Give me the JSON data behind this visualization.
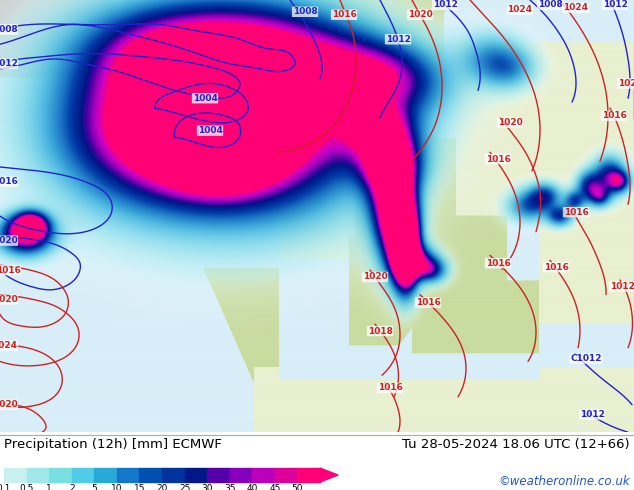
{
  "title_left": "Precipitation (12h) [mm] ECMWF",
  "title_right": "Tu 28-05-2024 18.06 UTC (12+66)",
  "watermark": "©weatheronline.co.uk",
  "colorbar_values": [
    "0.1",
    "0.5",
    "1",
    "2",
    "5",
    "10",
    "15",
    "20",
    "25",
    "30",
    "35",
    "40",
    "45",
    "50"
  ],
  "colorbar_colors": [
    "#c8f0f0",
    "#a0e8e8",
    "#78e0e0",
    "#50cce8",
    "#28aad8",
    "#1478c8",
    "#0050b4",
    "#0032a0",
    "#001888",
    "#5500aa",
    "#8800bb",
    "#bb00bb",
    "#dd0099",
    "#ff0077"
  ],
  "bg_color": "#ffffff",
  "ocean_color": "#d8eef8",
  "land_color_green": "#c8dca0",
  "land_color_light": "#e8f0d0",
  "land_color_gray": "#c8c8c8",
  "sea_color": "#b8ddf0",
  "prec_light1": "#d0f0f8",
  "prec_light2": "#a8e4f0",
  "prec_mid1": "#70cce8",
  "prec_mid2": "#3888d0",
  "prec_dark1": "#1040b0",
  "prec_dark2": "#000880",
  "prec_purple": "#5500aa",
  "prec_magenta": "#cc00cc",
  "blue_isobar": "#2222cc",
  "red_isobar": "#cc2222",
  "label_fontsize": 8,
  "title_fontsize": 9,
  "watermark_color": "#2255cc",
  "watermark_fontsize": 8,
  "isobar_lw": 1.0,
  "isobar_fontsize": 6.5
}
